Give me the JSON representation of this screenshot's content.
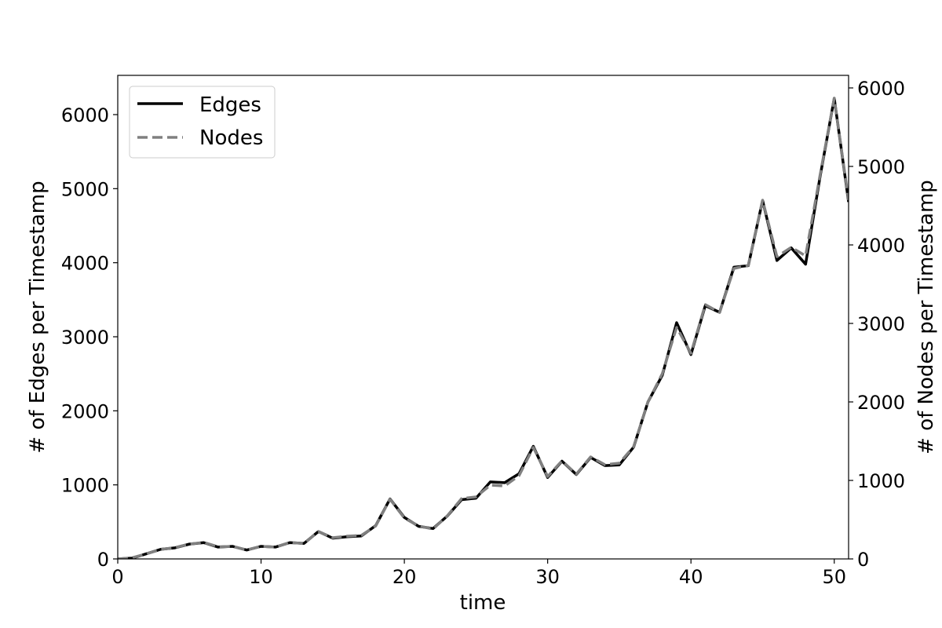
{
  "chart_data": {
    "type": "line",
    "xlabel": "time",
    "ylabel_left": "# of Edges per Timestamp",
    "ylabel_right": "# of Nodes per Timestamp",
    "xlim": [
      0,
      51
    ],
    "ylim_left": [
      0,
      6530
    ],
    "ylim_right": [
      0,
      6160
    ],
    "x_ticks": [
      0,
      10,
      20,
      30,
      40,
      50
    ],
    "y_ticks_left": [
      0,
      1000,
      2000,
      3000,
      4000,
      5000,
      6000
    ],
    "y_ticks_right": [
      0,
      1000,
      2000,
      3000,
      4000,
      5000,
      6000
    ],
    "grid": false,
    "legend_position": "top-left",
    "x": [
      0,
      1,
      2,
      3,
      4,
      5,
      6,
      7,
      8,
      9,
      10,
      11,
      12,
      13,
      14,
      15,
      16,
      17,
      18,
      19,
      20,
      21,
      22,
      23,
      24,
      25,
      26,
      27,
      28,
      29,
      30,
      31,
      32,
      33,
      34,
      35,
      36,
      37,
      38,
      39,
      40,
      41,
      42,
      43,
      44,
      45,
      46,
      47,
      48,
      49,
      50,
      51
    ],
    "series": [
      {
        "name": "Edges",
        "axis": "left",
        "color": "#000000",
        "dash": "solid",
        "values": [
          0,
          10,
          70,
          130,
          150,
          200,
          220,
          160,
          170,
          120,
          170,
          160,
          220,
          210,
          370,
          280,
          300,
          310,
          450,
          810,
          560,
          440,
          410,
          580,
          800,
          820,
          1040,
          1030,
          1150,
          1520,
          1100,
          1320,
          1140,
          1370,
          1260,
          1270,
          1510,
          2120,
          2480,
          3190,
          2760,
          3420,
          3330,
          3940,
          3960,
          4840,
          4030,
          4200,
          3980,
          5150,
          6220,
          4820
        ]
      },
      {
        "name": "Nodes",
        "axis": "right",
        "color": "#808080",
        "dash": "dashed",
        "values": [
          0,
          15,
          65,
          120,
          145,
          190,
          210,
          155,
          160,
          115,
          160,
          150,
          210,
          195,
          350,
          270,
          290,
          300,
          420,
          760,
          520,
          420,
          380,
          550,
          770,
          790,
          940,
          930,
          1060,
          1420,
          1050,
          1250,
          1080,
          1300,
          1200,
          1220,
          1430,
          2000,
          2360,
          2950,
          2620,
          3240,
          3140,
          3700,
          3740,
          4570,
          3850,
          3970,
          3860,
          4880,
          5870,
          4570
        ]
      }
    ]
  }
}
